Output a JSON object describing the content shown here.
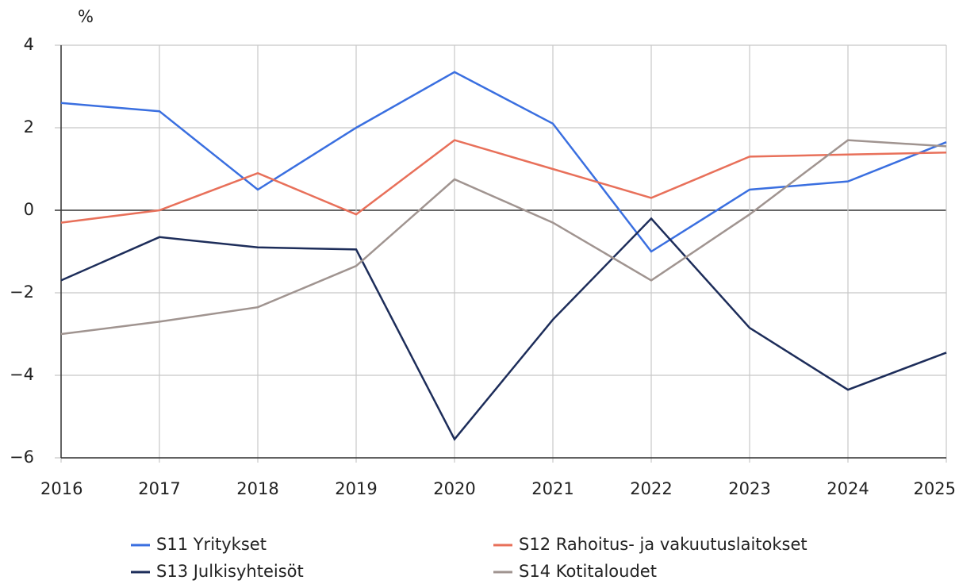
{
  "chart_data": {
    "type": "line",
    "y_label": "%",
    "categories": [
      "2016",
      "2017",
      "2018",
      "2019",
      "2020",
      "2021",
      "2022",
      "2023",
      "2024",
      "2025"
    ],
    "series": [
      {
        "name": "S11 Yritykset",
        "color": "#3a6fe0",
        "values": [
          2.6,
          2.4,
          0.5,
          2.0,
          3.35,
          2.1,
          -1.0,
          0.5,
          0.7,
          1.65
        ]
      },
      {
        "name": "S12 Rahoitus- ja vakuutuslaitokset",
        "color": "#e8705a",
        "values": [
          -0.3,
          0,
          0.9,
          -0.1,
          1.7,
          1.0,
          0.3,
          1.3,
          1.35,
          1.4
        ]
      },
      {
        "name": "S13 Julkisyhteisöt",
        "color": "#1d2d5a",
        "values": [
          -1.7,
          -0.65,
          -0.9,
          -0.95,
          -5.55,
          -2.65,
          -0.2,
          -2.85,
          -4.35,
          -3.45
        ]
      },
      {
        "name": "S14 Kotitaloudet",
        "color": "#a09490",
        "values": [
          -3.0,
          -2.7,
          -2.35,
          -1.35,
          0.75,
          -0.3,
          -1.7,
          -0.1,
          1.7,
          1.55
        ]
      }
    ],
    "ylim": [
      -6,
      4
    ],
    "yticks": [
      {
        "value": -6,
        "label": "−6"
      },
      {
        "value": -4,
        "label": "−4"
      },
      {
        "value": -2,
        "label": "−2"
      },
      0,
      2,
      4
    ],
    "grid": true
  }
}
